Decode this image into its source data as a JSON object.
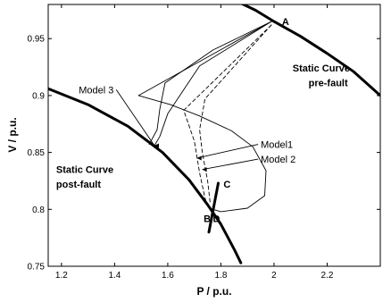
{
  "chart_data": {
    "type": "line",
    "xlabel": "P / p.u.",
    "ylabel": "V / p.u.",
    "xlim": [
      1.15,
      2.4
    ],
    "ylim": [
      0.75,
      0.98
    ],
    "xticks": [
      1.2,
      1.4,
      1.6,
      1.8,
      2,
      2.2
    ],
    "yticks": [
      0.75,
      0.8,
      0.85,
      0.9,
      0.95
    ],
    "tick_labels_x": [
      "1.2",
      "1.4",
      "1.6",
      "1.8",
      "2",
      "2.2"
    ],
    "tick_labels_y": [
      "0.75",
      "0.8",
      "0.85",
      "0.9",
      "0.95"
    ],
    "grid": false,
    "series": [
      {
        "style": "thick",
        "points": [
          [
            1.84,
            0.985
          ],
          [
            1.93,
            0.975
          ],
          [
            2.0,
            0.965
          ],
          [
            2.1,
            0.952
          ],
          [
            2.2,
            0.937
          ],
          [
            2.3,
            0.921
          ],
          [
            2.4,
            0.9
          ]
        ]
      },
      {
        "style": "thick",
        "points": [
          [
            1.15,
            0.906
          ],
          [
            1.3,
            0.892
          ],
          [
            1.45,
            0.873
          ],
          [
            1.58,
            0.85
          ],
          [
            1.68,
            0.826
          ],
          [
            1.75,
            0.804
          ],
          [
            1.8,
            0.787
          ],
          [
            1.85,
            0.765
          ],
          [
            1.875,
            0.753
          ]
        ]
      },
      {
        "style": "thin",
        "points": [
          [
            1.99,
            0.965
          ],
          [
            1.77,
            0.94
          ],
          [
            1.59,
            0.911
          ],
          [
            1.57,
            0.888
          ],
          [
            1.56,
            0.87
          ],
          [
            1.53,
            0.857
          ]
        ]
      },
      {
        "style": "thin",
        "points": [
          [
            1.99,
            0.965
          ],
          [
            1.72,
            0.926
          ],
          [
            1.6,
            0.884
          ],
          [
            1.57,
            0.864
          ],
          [
            1.55,
            0.856
          ]
        ]
      },
      {
        "style": "thin",
        "points": [
          [
            1.99,
            0.965
          ],
          [
            1.49,
            0.9
          ],
          [
            1.61,
            0.892
          ],
          [
            1.72,
            0.882
          ],
          [
            1.84,
            0.869
          ],
          [
            1.92,
            0.855
          ],
          [
            1.97,
            0.834
          ],
          [
            1.965,
            0.812
          ],
          [
            1.9,
            0.801
          ],
          [
            1.8,
            0.798
          ],
          [
            1.77,
            0.8
          ]
        ]
      },
      {
        "style": "dashed",
        "points": [
          [
            1.99,
            0.962
          ],
          [
            1.66,
            0.887
          ],
          [
            1.7,
            0.86
          ],
          [
            1.72,
            0.832
          ],
          [
            1.74,
            0.81
          ],
          [
            1.755,
            0.8
          ]
        ]
      },
      {
        "style": "dashed",
        "points": [
          [
            1.99,
            0.962
          ],
          [
            1.74,
            0.897
          ],
          [
            1.72,
            0.87
          ],
          [
            1.73,
            0.85
          ],
          [
            1.75,
            0.825
          ],
          [
            1.76,
            0.805
          ]
        ]
      },
      {
        "style": "thick",
        "points": [
          [
            1.755,
            0.78
          ],
          [
            1.79,
            0.823
          ]
        ]
      }
    ],
    "annotations": [
      {
        "text": "A",
        "x": 2.03,
        "y": 0.962,
        "kind": "point"
      },
      {
        "text": "B",
        "x": 1.735,
        "y": 0.789,
        "kind": "point"
      },
      {
        "text": "C",
        "x": 1.81,
        "y": 0.819,
        "kind": "point"
      },
      {
        "text": "D",
        "x": 1.77,
        "y": 0.789,
        "kind": "point"
      },
      {
        "text": "Static Curve",
        "x": 2.07,
        "y": 0.921,
        "kind": "bold"
      },
      {
        "text": "pre-fault",
        "x": 2.13,
        "y": 0.908,
        "kind": "bold"
      },
      {
        "text": "Static Curve",
        "x": 1.18,
        "y": 0.832,
        "kind": "bold"
      },
      {
        "text": "post-fault",
        "x": 1.18,
        "y": 0.819,
        "kind": "bold"
      },
      {
        "text": "Model 3",
        "x": 1.265,
        "y": 0.902,
        "kind": "label",
        "pointer_to": [
          1.55,
          0.856
        ]
      },
      {
        "text": "Model1",
        "x": 1.95,
        "y": 0.854,
        "kind": "label",
        "pointer_to": [
          1.71,
          0.845
        ]
      },
      {
        "text": "Model 2",
        "x": 1.95,
        "y": 0.841,
        "kind": "label",
        "pointer_to": [
          1.73,
          0.835
        ]
      }
    ]
  }
}
